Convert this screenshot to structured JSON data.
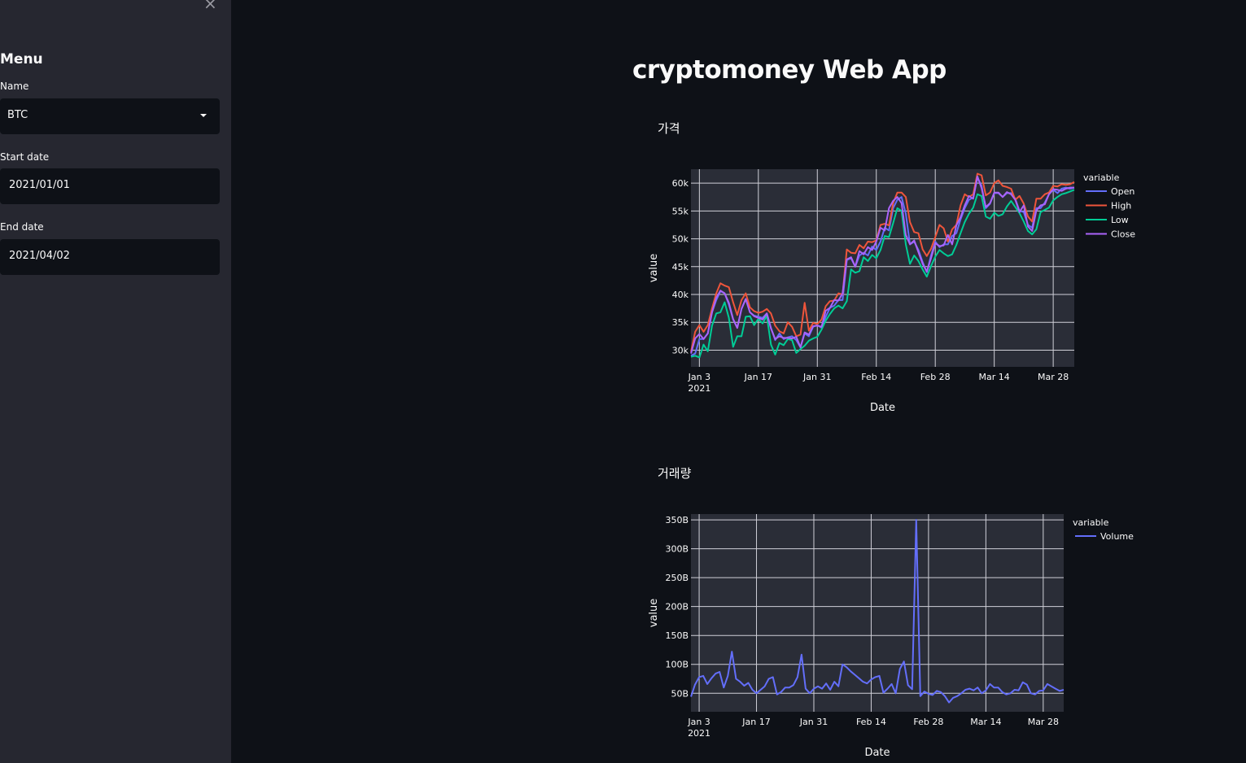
{
  "sidebar": {
    "close_label": "×",
    "menu_title": "Menu",
    "name_label": "Name",
    "name_value": "BTC",
    "start_label": "Start date",
    "start_value": "2021/01/01",
    "end_label": "End date",
    "end_value": "2021/04/02"
  },
  "main": {
    "title": "cryptomoney Web App",
    "price_heading": "가격",
    "volume_heading": "거래량"
  },
  "colors": {
    "open": "#636efa",
    "high": "#ef553b",
    "low": "#00cc96",
    "close": "#ab63fa",
    "plot_bg": "#2a2d37"
  },
  "chart_data": [
    {
      "type": "line",
      "xlabel": "Date",
      "ylabel": "value",
      "legend_title": "variable",
      "ylim": [
        27000,
        62500
      ],
      "xlim": [
        1,
        92
      ],
      "y_ticks": [
        30000,
        35000,
        40000,
        45000,
        50000,
        55000,
        60000
      ],
      "y_tick_labels": [
        "30k",
        "35k",
        "40k",
        "45k",
        "50k",
        "55k",
        "60k"
      ],
      "x_ticks": [
        3,
        17,
        31,
        45,
        59,
        73,
        87
      ],
      "x_tick_labels": [
        "Jan 3",
        "Jan 17",
        "Jan 31",
        "Feb 14",
        "Feb 28",
        "Mar 14",
        "Mar 28"
      ],
      "x_tick_year": "2021",
      "x": [
        1,
        2,
        3,
        4,
        5,
        6,
        7,
        8,
        9,
        10,
        11,
        12,
        13,
        14,
        15,
        16,
        17,
        18,
        19,
        20,
        21,
        22,
        23,
        24,
        25,
        26,
        27,
        28,
        29,
        30,
        31,
        32,
        33,
        34,
        35,
        36,
        37,
        38,
        39,
        40,
        41,
        42,
        43,
        44,
        45,
        46,
        47,
        48,
        49,
        50,
        51,
        52,
        53,
        54,
        55,
        56,
        57,
        58,
        59,
        60,
        61,
        62,
        63,
        64,
        65,
        66,
        67,
        68,
        69,
        70,
        71,
        72,
        73,
        74,
        75,
        76,
        77,
        78,
        79,
        80,
        81,
        82,
        83,
        84,
        85,
        86,
        87,
        88,
        89,
        90,
        91,
        92
      ],
      "series": [
        {
          "name": "Open",
          "values": [
            29000,
            29400,
            32000,
            32000,
            33000,
            36800,
            39000,
            40600,
            40200,
            38200,
            35500,
            34000,
            37400,
            39200,
            36800,
            36200,
            36000,
            35800,
            36600,
            34000,
            31800,
            33000,
            32000,
            32300,
            32500,
            31800,
            30500,
            33000,
            32500,
            34200,
            34500,
            34000,
            36000,
            37600,
            38000,
            39000,
            39000,
            46200,
            46500,
            45000,
            47000,
            47500,
            47000,
            48600,
            48000,
            49500,
            52000,
            51500,
            55500,
            57000,
            57500,
            54500,
            49000,
            49500,
            48000,
            45800,
            44000,
            47000,
            49500,
            48500,
            49000,
            49000,
            50500,
            51000,
            53500,
            55500,
            57000,
            57400,
            61000,
            59500,
            55500,
            56300,
            58200,
            58200,
            57500,
            58200,
            58200,
            57200,
            55000,
            54800,
            52500,
            52000,
            55500,
            55500,
            56500,
            58000,
            58800,
            58200,
            59000,
            59200,
            59000,
            59200
          ]
        },
        {
          "name": "High",
          "values": [
            29700,
            33300,
            34500,
            33300,
            34500,
            37500,
            40200,
            42000,
            41600,
            41300,
            38600,
            36300,
            39000,
            40200,
            37700,
            37000,
            36700,
            36900,
            37400,
            36600,
            34400,
            33400,
            33000,
            35000,
            34200,
            32500,
            32800,
            38500,
            33500,
            34900,
            34700,
            35500,
            37900,
            38800,
            38900,
            40200,
            40000,
            48100,
            47500,
            47400,
            48900,
            48300,
            49500,
            49400,
            49700,
            52500,
            52700,
            52400,
            56400,
            58300,
            58300,
            57500,
            53000,
            51200,
            51000,
            48100,
            46900,
            48200,
            50300,
            52500,
            51900,
            49500,
            51700,
            52500,
            56000,
            58000,
            57500,
            58000,
            61700,
            61400,
            57800,
            58300,
            60000,
            60500,
            59500,
            59300,
            59000,
            57000,
            57700,
            56300,
            54000,
            53100,
            57200,
            57200,
            58000,
            58300,
            59500,
            59400,
            59800,
            59700,
            59800,
            60200
          ]
        },
        {
          "name": "Low",
          "values": [
            28800,
            29000,
            28700,
            31000,
            29800,
            34400,
            36600,
            36800,
            38600,
            35800,
            30600,
            32500,
            32500,
            36000,
            36100,
            34500,
            35600,
            34800,
            36200,
            31000,
            29200,
            31300,
            30900,
            32000,
            31800,
            29500,
            30200,
            30800,
            31700,
            32100,
            32400,
            33700,
            35300,
            36500,
            37500,
            38000,
            37500,
            38800,
            44500,
            43900,
            44200,
            46700,
            46000,
            47100,
            46500,
            48000,
            50500,
            50300,
            52800,
            55500,
            55000,
            49000,
            45500,
            47000,
            46000,
            44500,
            43200,
            45100,
            46800,
            48000,
            47400,
            46900,
            47200,
            48900,
            51000,
            53000,
            54500,
            55600,
            58000,
            57700,
            54000,
            53600,
            54700,
            54100,
            54400,
            55800,
            56800,
            55700,
            54600,
            53100,
            51400,
            50800,
            51700,
            54800,
            55200,
            55600,
            56900,
            57500,
            58000,
            58200,
            58500,
            58800
          ]
        },
        {
          "name": "Close",
          "values": [
            29400,
            32100,
            32900,
            32000,
            33000,
            36800,
            39400,
            40700,
            40200,
            38500,
            35600,
            34000,
            37400,
            39200,
            36800,
            36100,
            35800,
            35500,
            36600,
            33900,
            32000,
            32500,
            32200,
            32200,
            32100,
            32400,
            30500,
            33200,
            32800,
            34300,
            34400,
            34200,
            37100,
            37600,
            39000,
            38900,
            40200,
            46300,
            46700,
            45000,
            47800,
            47200,
            48500,
            48000,
            49500,
            52000,
            51500,
            55500,
            56800,
            57500,
            56400,
            50700,
            49000,
            49700,
            47600,
            45500,
            44100,
            46500,
            49200,
            48700,
            48800,
            50700,
            49000,
            52400,
            53900,
            56000,
            57700,
            57200,
            61200,
            59100,
            55700,
            56400,
            58300,
            58300,
            57500,
            58400,
            58000,
            57000,
            54800,
            56000,
            52200,
            51400,
            55100,
            56000,
            56200,
            58000,
            58900,
            58800,
            58600,
            59000,
            59200,
            59200
          ]
        }
      ]
    },
    {
      "type": "line",
      "xlabel": "Date",
      "ylabel": "value",
      "legend_title": "variable",
      "ylim": [
        18,
        360
      ],
      "xlim": [
        1,
        92
      ],
      "y_ticks": [
        50,
        100,
        150,
        200,
        250,
        300,
        350
      ],
      "y_tick_labels": [
        "50B",
        "100B",
        "150B",
        "200B",
        "250B",
        "300B",
        "350B"
      ],
      "x_ticks": [
        3,
        17,
        31,
        45,
        59,
        73,
        87
      ],
      "x_tick_labels": [
        "Jan 3",
        "Jan 17",
        "Jan 31",
        "Feb 14",
        "Feb 28",
        "Mar 14",
        "Mar 28"
      ],
      "x_tick_year": "2021",
      "x": [
        1,
        2,
        3,
        4,
        5,
        6,
        7,
        8,
        9,
        10,
        11,
        12,
        13,
        14,
        15,
        16,
        17,
        18,
        19,
        20,
        21,
        22,
        23,
        24,
        25,
        26,
        27,
        28,
        29,
        30,
        31,
        32,
        33,
        34,
        35,
        36,
        37,
        38,
        39,
        40,
        41,
        42,
        43,
        44,
        45,
        46,
        47,
        48,
        49,
        50,
        51,
        52,
        53,
        54,
        55,
        56,
        57,
        58,
        59,
        60,
        61,
        62,
        63,
        64,
        65,
        66,
        67,
        68,
        69,
        70,
        71,
        72,
        73,
        74,
        75,
        76,
        77,
        78,
        79,
        80,
        81,
        82,
        83,
        84,
        85,
        86,
        87,
        88,
        89,
        90,
        91,
        92
      ],
      "series": [
        {
          "name": "Volume",
          "values": [
            44,
            65,
            78,
            80,
            66,
            76,
            84,
            87,
            60,
            80,
            122,
            75,
            70,
            63,
            68,
            56,
            50,
            56,
            62,
            75,
            78,
            48,
            52,
            60,
            60,
            64,
            78,
            117,
            58,
            50,
            58,
            62,
            58,
            67,
            56,
            70,
            62,
            100,
            95,
            88,
            82,
            76,
            70,
            67,
            74,
            78,
            80,
            51,
            58,
            66,
            50,
            92,
            105,
            64,
            57,
            350,
            45,
            53,
            49,
            47,
            54,
            52,
            45,
            34,
            42,
            45,
            50,
            56,
            58,
            55,
            60,
            50,
            55,
            66,
            60,
            60,
            52,
            48,
            50,
            56,
            55,
            69,
            65,
            50,
            48,
            54,
            55,
            66,
            62,
            58,
            54,
            56
          ]
        }
      ]
    }
  ]
}
